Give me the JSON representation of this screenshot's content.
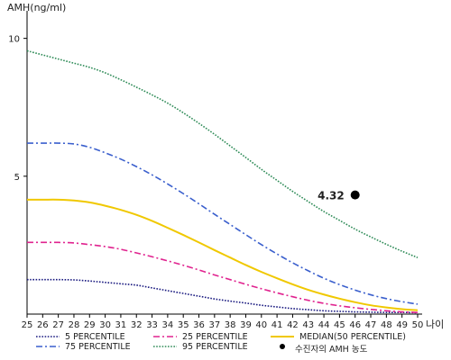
{
  "chart_data": {
    "type": "line",
    "ylabel": "AMH(ng/ml)",
    "xlabel": "나이",
    "x": [
      25,
      26,
      27,
      28,
      29,
      30,
      31,
      32,
      33,
      34,
      35,
      36,
      37,
      38,
      39,
      40,
      41,
      42,
      43,
      44,
      45,
      46,
      47,
      48,
      49,
      50
    ],
    "xlim": [
      25,
      50
    ],
    "ylim": [
      0,
      11
    ],
    "yticks": [
      5,
      10
    ],
    "series": [
      {
        "name": "5 PERCENTILE",
        "color": "#1a1a80",
        "dash": "dotted",
        "values": [
          1.25,
          1.25,
          1.25,
          1.24,
          1.2,
          1.15,
          1.1,
          1.05,
          0.95,
          0.85,
          0.75,
          0.65,
          0.55,
          0.47,
          0.4,
          0.32,
          0.26,
          0.2,
          0.16,
          0.12,
          0.1,
          0.08,
          0.07,
          0.06,
          0.06,
          0.05
        ]
      },
      {
        "name": "25 PERCENTILE",
        "color": "#e0238f",
        "dash": "dash-dot",
        "values": [
          2.6,
          2.6,
          2.6,
          2.58,
          2.52,
          2.45,
          2.35,
          2.22,
          2.08,
          1.93,
          1.77,
          1.6,
          1.42,
          1.25,
          1.08,
          0.92,
          0.77,
          0.63,
          0.5,
          0.39,
          0.3,
          0.23,
          0.17,
          0.12,
          0.08,
          0.06
        ]
      },
      {
        "name": "MEDIAN(50 PERCENTILE)",
        "color": "#f0c800",
        "dash": "solid",
        "values": [
          4.15,
          4.15,
          4.15,
          4.12,
          4.05,
          3.93,
          3.78,
          3.6,
          3.38,
          3.13,
          2.87,
          2.6,
          2.32,
          2.05,
          1.78,
          1.53,
          1.3,
          1.08,
          0.88,
          0.71,
          0.56,
          0.43,
          0.32,
          0.24,
          0.18,
          0.14
        ]
      },
      {
        "name": "75 PERCENTILE",
        "color": "#3a5fcd",
        "dash": "dash-dot",
        "values": [
          6.2,
          6.2,
          6.2,
          6.17,
          6.05,
          5.85,
          5.62,
          5.35,
          5.05,
          4.72,
          4.37,
          4.0,
          3.62,
          3.25,
          2.88,
          2.52,
          2.18,
          1.86,
          1.57,
          1.3,
          1.07,
          0.87,
          0.7,
          0.56,
          0.45,
          0.36
        ]
      },
      {
        "name": "95 PERCENTILE",
        "color": "#2e8b57",
        "dash": "dotted",
        "values": [
          9.55,
          9.4,
          9.25,
          9.1,
          8.95,
          8.75,
          8.5,
          8.23,
          7.95,
          7.65,
          7.3,
          6.92,
          6.52,
          6.1,
          5.68,
          5.25,
          4.85,
          4.45,
          4.08,
          3.72,
          3.4,
          3.08,
          2.8,
          2.53,
          2.28,
          2.05
        ]
      }
    ],
    "annotation": {
      "label": "4.32",
      "x": 46,
      "y": 4.32
    },
    "legend": {
      "position": "bottom",
      "marker_label": "수진자의 AMH 농도"
    }
  }
}
